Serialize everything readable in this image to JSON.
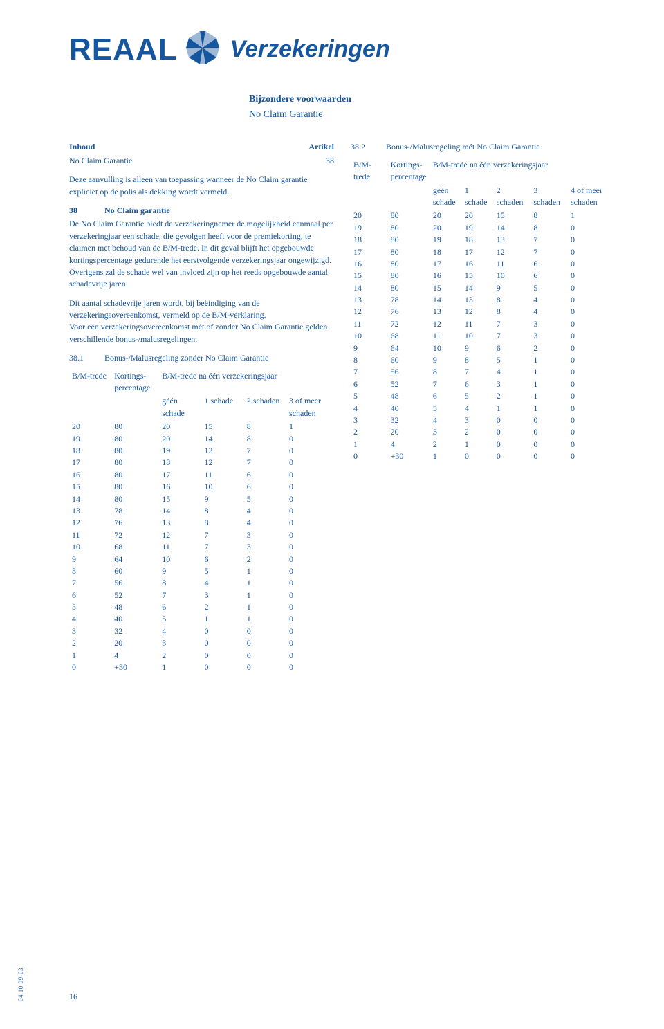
{
  "brand": {
    "name": "REAAL",
    "subtitle": "Verzekeringen",
    "color_primary": "#16569f",
    "color_accent": "#6b8fb8",
    "background": "#ffffff"
  },
  "doc": {
    "title_line1": "Bijzondere voorwaarden",
    "title_line2": "No Claim Garantie"
  },
  "inhoud": {
    "heading": "Inhoud",
    "artikel_label": "Artikel",
    "item_label": "No Claim Garantie",
    "item_artikel": "38"
  },
  "body": {
    "para_intro": "Deze aanvulling is alleen van toepassing wanneer de No Claim garantie expliciet op de polis als dekking wordt vermeld.",
    "sec38_num": "38",
    "sec38_title": "No Claim garantie",
    "para_38": "De No Claim Garantie biedt de verzekeringnemer de mogelijkheid eenmaal per verzekeringjaar een schade, die gevolgen heeft voor de premiekorting, te claimen met behoud van de B/M-trede. In dit geval blijft het opgebouwde kortingspercentage gedurende het eerstvolgende verzekeringsjaar ongewijzigd.",
    "para_38b": "Overigens zal de schade wel van invloed zijn op het reeds opgebouwde aantal schadevrije jaren.",
    "para_38c": "Dit aantal schadevrije jaren wordt, bij beëindiging van de verzekeringsovereenkomst, vermeld op de B/M-verklaring.",
    "para_38d": "Voor een verzekeringsovereenkomst mét of zonder No Claim Garantie gelden verschillende bonus-/malusregelingen.",
    "sec381_num": "38.1",
    "sec381_title": "Bonus-/Malusregeling zonder No Claim Garantie",
    "sec382_num": "38.2",
    "sec382_title": "Bonus-/Malusregeling mét No Claim Garantie"
  },
  "table381": {
    "col_bm": "B/M-trede",
    "col_kort": "Kortings-\npercentage",
    "col_after": "B/M-trede na één verzekeringsjaar",
    "sub_geen": "géén\nschade",
    "sub_1": "1 schade",
    "sub_2": "2 schaden",
    "sub_3plus": "3 of meer\nschaden",
    "rows": [
      [
        "20",
        "80",
        "20",
        "15",
        "8",
        "1"
      ],
      [
        "19",
        "80",
        "20",
        "14",
        "8",
        "0"
      ],
      [
        "18",
        "80",
        "19",
        "13",
        "7",
        "0"
      ],
      [
        "17",
        "80",
        "18",
        "12",
        "7",
        "0"
      ],
      [
        "16",
        "80",
        "17",
        "11",
        "6",
        "0"
      ],
      [
        "15",
        "80",
        "16",
        "10",
        "6",
        "0"
      ],
      [
        "14",
        "80",
        "15",
        "9",
        "5",
        "0"
      ],
      [
        "13",
        "78",
        "14",
        "8",
        "4",
        "0"
      ],
      [
        "12",
        "76",
        "13",
        "8",
        "4",
        "0"
      ],
      [
        "11",
        "72",
        "12",
        "7",
        "3",
        "0"
      ],
      [
        "10",
        "68",
        "11",
        "7",
        "3",
        "0"
      ],
      [
        "9",
        "64",
        "10",
        "6",
        "2",
        "0"
      ],
      [
        "8",
        "60",
        "9",
        "5",
        "1",
        "0"
      ],
      [
        "7",
        "56",
        "8",
        "4",
        "1",
        "0"
      ],
      [
        "6",
        "52",
        "7",
        "3",
        "1",
        "0"
      ],
      [
        "5",
        "48",
        "6",
        "2",
        "1",
        "0"
      ],
      [
        "4",
        "40",
        "5",
        "1",
        "1",
        "0"
      ],
      [
        "3",
        "32",
        "4",
        "0",
        "0",
        "0"
      ],
      [
        "2",
        "20",
        "3",
        "0",
        "0",
        "0"
      ],
      [
        "1",
        "4",
        "2",
        "0",
        "0",
        "0"
      ],
      [
        "0",
        "+30",
        "1",
        "0",
        "0",
        "0"
      ]
    ]
  },
  "table382": {
    "col_bm": "B/M-trede",
    "col_kort": "Kortings-\npercentage",
    "col_after": "B/M-trede na één verzekeringsjaar",
    "sub_geen": "géén\nschade",
    "sub_1": "1 schade",
    "sub_2": "2 schaden",
    "sub_3": "3 schaden",
    "sub_4plus": "4 of meer\nschaden",
    "rows": [
      [
        "20",
        "80",
        "20",
        "20",
        "15",
        "8",
        "1"
      ],
      [
        "19",
        "80",
        "20",
        "19",
        "14",
        "8",
        "0"
      ],
      [
        "18",
        "80",
        "19",
        "18",
        "13",
        "7",
        "0"
      ],
      [
        "17",
        "80",
        "18",
        "17",
        "12",
        "7",
        "0"
      ],
      [
        "16",
        "80",
        "17",
        "16",
        "11",
        "6",
        "0"
      ],
      [
        "15",
        "80",
        "16",
        "15",
        "10",
        "6",
        "0"
      ],
      [
        "14",
        "80",
        "15",
        "14",
        "9",
        "5",
        "0"
      ],
      [
        "13",
        "78",
        "14",
        "13",
        "8",
        "4",
        "0"
      ],
      [
        "12",
        "76",
        "13",
        "12",
        "8",
        "4",
        "0"
      ],
      [
        "11",
        "72",
        "12",
        "11",
        "7",
        "3",
        "0"
      ],
      [
        "10",
        "68",
        "11",
        "10",
        "7",
        "3",
        "0"
      ],
      [
        "9",
        "64",
        "10",
        "9",
        "6",
        "2",
        "0"
      ],
      [
        "8",
        "60",
        "9",
        "8",
        "5",
        "1",
        "0"
      ],
      [
        "7",
        "56",
        "8",
        "7",
        "4",
        "1",
        "0"
      ],
      [
        "6",
        "52",
        "7",
        "6",
        "3",
        "1",
        "0"
      ],
      [
        "5",
        "48",
        "6",
        "5",
        "2",
        "1",
        "0"
      ],
      [
        "4",
        "40",
        "5",
        "4",
        "1",
        "1",
        "0"
      ],
      [
        "3",
        "32",
        "4",
        "3",
        "0",
        "0",
        "0"
      ],
      [
        "2",
        "20",
        "3",
        "2",
        "0",
        "0",
        "0"
      ],
      [
        "1",
        "4",
        "2",
        "1",
        "0",
        "0",
        "0"
      ],
      [
        "0",
        "+30",
        "1",
        "0",
        "0",
        "0",
        "0"
      ]
    ]
  },
  "footer": {
    "side_code": "04 10 09-03",
    "page_number": "16"
  }
}
